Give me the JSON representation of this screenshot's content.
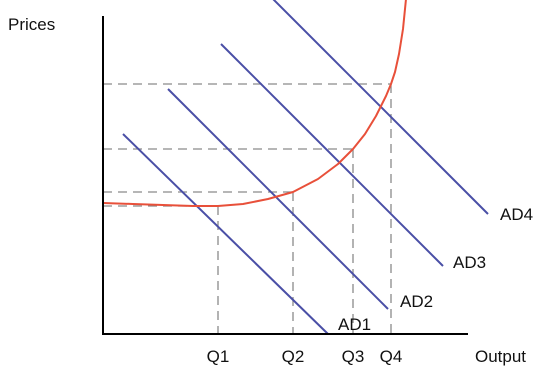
{
  "chart_data": {
    "type": "line",
    "ylabel": "Prices",
    "xlabel": "Output",
    "x_ticks": [
      {
        "label": "Q1",
        "x": 115
      },
      {
        "label": "Q2",
        "x": 190
      },
      {
        "label": "Q3",
        "x": 250
      },
      {
        "label": "Q4",
        "x": 288
      }
    ],
    "demand_curves": [
      {
        "name": "AD1",
        "points": [
          [
            20,
            200
          ],
          [
            225,
            0
          ]
        ]
      },
      {
        "name": "AD2",
        "points": [
          [
            65,
            245
          ],
          [
            285,
            25
          ]
        ]
      },
      {
        "name": "AD3",
        "points": [
          [
            118,
            290
          ],
          [
            340,
            68
          ]
        ]
      },
      {
        "name": "AD4",
        "points": [
          [
            165,
            340
          ],
          [
            385,
            120
          ]
        ]
      }
    ],
    "supply_curve": {
      "points": [
        [
          0,
          131
        ],
        [
          30,
          130
        ],
        [
          60,
          129
        ],
        [
          90,
          128
        ],
        [
          115,
          128
        ],
        [
          140,
          130
        ],
        [
          165,
          135
        ],
        [
          190,
          142
        ],
        [
          215,
          155
        ],
        [
          235,
          170
        ],
        [
          250,
          185
        ],
        [
          262,
          200
        ],
        [
          273,
          218
        ],
        [
          283,
          238
        ],
        [
          288,
          250
        ],
        [
          292,
          262
        ],
        [
          296,
          280
        ],
        [
          300,
          305
        ],
        [
          303,
          335
        ]
      ]
    },
    "equilibria": [
      {
        "name": "Q1",
        "x": 115,
        "y": 128
      },
      {
        "name": "Q2",
        "x": 190,
        "y": 142
      },
      {
        "name": "Q3",
        "x": 250,
        "y": 185
      },
      {
        "name": "Q4",
        "x": 288,
        "y": 250
      }
    ],
    "xlim": [
      0,
      450
    ],
    "ylim": [
      0,
      330
    ],
    "colors": {
      "axis": "#000000",
      "demand": "#4a4fa6",
      "supply": "#e8503a",
      "guide": "#8a8a8a"
    }
  }
}
